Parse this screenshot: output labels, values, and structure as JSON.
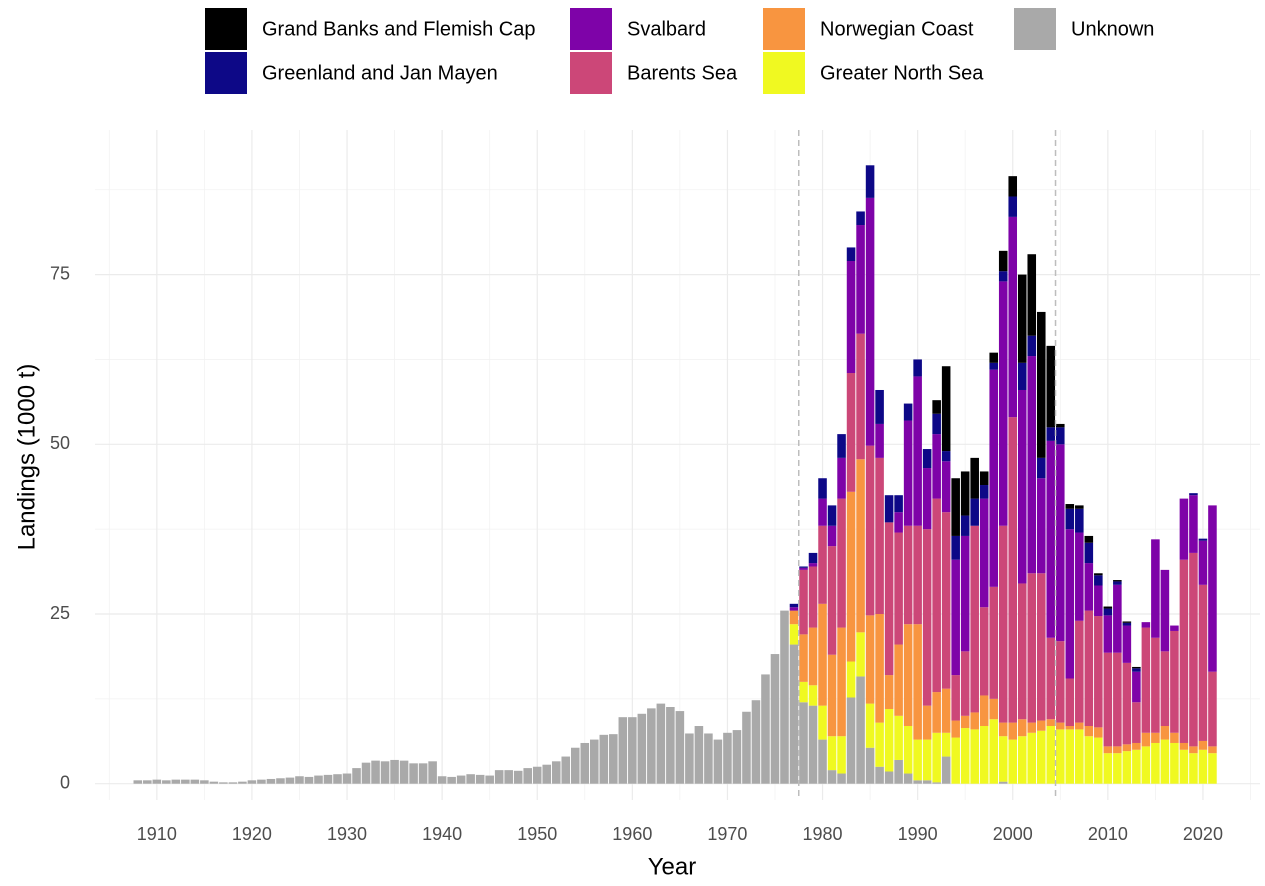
{
  "chart_data": {
    "type": "stacked-bar",
    "x_label": "Year",
    "y_label": "Landings (1000 t)",
    "x": [
      1908,
      1909,
      1910,
      1911,
      1912,
      1913,
      1914,
      1915,
      1916,
      1917,
      1918,
      1919,
      1920,
      1921,
      1922,
      1923,
      1924,
      1925,
      1926,
      1927,
      1928,
      1929,
      1930,
      1931,
      1932,
      1933,
      1934,
      1935,
      1936,
      1937,
      1938,
      1939,
      1940,
      1941,
      1942,
      1943,
      1944,
      1945,
      1946,
      1947,
      1948,
      1949,
      1950,
      1951,
      1952,
      1953,
      1954,
      1955,
      1956,
      1957,
      1958,
      1959,
      1960,
      1961,
      1962,
      1963,
      1964,
      1965,
      1966,
      1967,
      1968,
      1969,
      1970,
      1971,
      1972,
      1973,
      1974,
      1975,
      1976,
      1977,
      1978,
      1979,
      1980,
      1981,
      1982,
      1983,
      1984,
      1985,
      1986,
      1987,
      1988,
      1989,
      1990,
      1991,
      1992,
      1993,
      1994,
      1995,
      1996,
      1997,
      1998,
      1999,
      2000,
      2001,
      2002,
      2003,
      2004,
      2005,
      2006,
      2007,
      2008,
      2009,
      2010,
      2011,
      2012,
      2013,
      2014,
      2015,
      2016,
      2017,
      2018,
      2019,
      2020,
      2021
    ],
    "series": [
      {
        "name": "Grand Banks and Flemish Cap",
        "color": "#000000",
        "values": [
          null,
          null,
          null,
          null,
          null,
          null,
          null,
          null,
          null,
          null,
          null,
          null,
          null,
          null,
          null,
          null,
          null,
          null,
          null,
          null,
          null,
          null,
          null,
          null,
          null,
          null,
          null,
          null,
          null,
          null,
          null,
          null,
          null,
          null,
          null,
          null,
          null,
          null,
          null,
          null,
          null,
          null,
          null,
          null,
          null,
          null,
          null,
          null,
          null,
          null,
          null,
          null,
          null,
          null,
          null,
          null,
          null,
          null,
          null,
          null,
          null,
          null,
          null,
          null,
          null,
          null,
          null,
          null,
          null,
          0,
          0,
          0,
          0,
          0,
          0,
          0,
          0,
          0,
          0,
          0,
          0,
          0,
          0,
          0,
          2,
          12.5,
          8.5,
          6.5,
          6,
          2,
          1.5,
          3,
          3,
          13,
          12,
          21.5,
          12,
          0.5,
          0.7,
          0.5,
          1,
          0.3,
          0.3,
          0.2,
          0.2,
          0.2,
          0,
          0,
          0,
          0,
          0,
          0,
          0,
          0
        ]
      },
      {
        "name": "Greenland and Jan Mayen",
        "color": "#0d0887",
        "values": [
          null,
          null,
          null,
          null,
          null,
          null,
          null,
          null,
          null,
          null,
          null,
          null,
          null,
          null,
          null,
          null,
          null,
          null,
          null,
          null,
          null,
          null,
          null,
          null,
          null,
          null,
          null,
          null,
          null,
          null,
          null,
          null,
          null,
          null,
          null,
          null,
          null,
          null,
          null,
          null,
          null,
          null,
          null,
          null,
          null,
          null,
          null,
          null,
          null,
          null,
          null,
          null,
          null,
          null,
          null,
          null,
          null,
          null,
          null,
          null,
          null,
          null,
          null,
          null,
          null,
          null,
          null,
          null,
          null,
          0.5,
          0.2,
          1.5,
          3,
          3,
          3.5,
          2,
          2,
          4.8,
          5,
          4,
          2.5,
          2.5,
          2.5,
          2.8,
          3,
          1.5,
          3.5,
          3,
          4,
          2,
          1,
          1.5,
          3,
          4,
          3,
          3,
          2,
          2.5,
          3,
          3.5,
          3,
          1.5,
          1,
          0.5,
          0.4,
          0.5,
          0,
          0,
          0,
          0,
          0,
          0.3,
          0.3,
          0
        ]
      },
      {
        "name": "Svalbard",
        "color": "#7e03a8",
        "values": [
          null,
          null,
          null,
          null,
          null,
          null,
          null,
          null,
          null,
          null,
          null,
          null,
          null,
          null,
          null,
          null,
          null,
          null,
          null,
          null,
          null,
          null,
          null,
          null,
          null,
          null,
          null,
          null,
          null,
          null,
          null,
          null,
          null,
          null,
          null,
          null,
          null,
          null,
          null,
          null,
          null,
          null,
          null,
          null,
          null,
          null,
          null,
          null,
          null,
          null,
          null,
          null,
          null,
          null,
          null,
          null,
          null,
          null,
          null,
          null,
          null,
          null,
          null,
          null,
          null,
          null,
          null,
          null,
          null,
          0.5,
          0.3,
          0.5,
          4,
          3,
          6,
          16.5,
          16,
          36.5,
          5,
          0,
          3,
          15.5,
          22,
          9,
          9.5,
          7.5,
          17,
          17,
          0,
          16,
          32,
          36,
          29.5,
          28.5,
          32,
          14,
          29,
          29,
          22,
          13,
          7,
          4.5,
          5.5,
          10,
          5.5,
          4.5,
          0.8,
          14.5,
          12,
          0.8,
          9,
          8.5,
          6.5,
          24.5
        ]
      },
      {
        "name": "Barents Sea",
        "color": "#cc4778",
        "values": [
          null,
          null,
          null,
          null,
          null,
          null,
          null,
          null,
          null,
          null,
          null,
          null,
          null,
          null,
          null,
          null,
          null,
          null,
          null,
          null,
          null,
          null,
          null,
          null,
          null,
          null,
          null,
          null,
          null,
          null,
          null,
          null,
          null,
          null,
          null,
          null,
          null,
          null,
          null,
          null,
          null,
          null,
          null,
          null,
          null,
          null,
          null,
          null,
          null,
          null,
          null,
          null,
          null,
          null,
          null,
          null,
          null,
          null,
          null,
          null,
          null,
          null,
          null,
          null,
          null,
          null,
          null,
          null,
          null,
          0,
          9.5,
          9,
          11.5,
          16,
          19,
          17.5,
          18.5,
          25,
          23,
          22.5,
          16.5,
          14.5,
          14.5,
          26,
          28.5,
          26,
          6.7,
          9.5,
          27.5,
          13,
          16.5,
          29,
          45,
          20,
          22,
          21.7,
          12,
          12,
          7,
          15,
          17,
          16.4,
          13.8,
          13.8,
          12,
          6,
          15.5,
          14,
          11,
          15,
          27,
          28.5,
          23,
          11
        ]
      },
      {
        "name": "Norwegian Coast",
        "color": "#f89540",
        "values": [
          null,
          null,
          null,
          null,
          null,
          null,
          null,
          null,
          null,
          null,
          null,
          null,
          null,
          null,
          null,
          null,
          null,
          null,
          null,
          null,
          null,
          null,
          null,
          null,
          null,
          null,
          null,
          null,
          null,
          null,
          null,
          null,
          null,
          null,
          null,
          null,
          null,
          null,
          null,
          null,
          null,
          null,
          null,
          null,
          null,
          null,
          null,
          null,
          null,
          null,
          null,
          null,
          null,
          null,
          null,
          null,
          null,
          null,
          null,
          null,
          null,
          null,
          null,
          null,
          null,
          null,
          null,
          null,
          null,
          2,
          7,
          8.5,
          15,
          12,
          16,
          25,
          25.5,
          13,
          16,
          5,
          10.5,
          15,
          17,
          5,
          6,
          6.5,
          2.5,
          1.8,
          2.5,
          4.5,
          3,
          2,
          2.5,
          2.5,
          1.5,
          1.5,
          1,
          1,
          0.5,
          1,
          1.5,
          1.5,
          1,
          1,
          1,
          1,
          2,
          1.5,
          2,
          1.5,
          1,
          1,
          1.3,
          1
        ]
      },
      {
        "name": "Greater North Sea",
        "color": "#f0f921",
        "values": [
          null,
          null,
          null,
          null,
          null,
          null,
          null,
          null,
          null,
          null,
          null,
          null,
          null,
          null,
          null,
          null,
          null,
          null,
          null,
          null,
          null,
          null,
          null,
          null,
          null,
          null,
          null,
          null,
          null,
          null,
          null,
          null,
          null,
          null,
          null,
          null,
          null,
          null,
          null,
          null,
          null,
          null,
          null,
          null,
          null,
          null,
          null,
          null,
          null,
          null,
          null,
          null,
          null,
          null,
          null,
          null,
          null,
          null,
          null,
          null,
          null,
          null,
          null,
          null,
          null,
          null,
          null,
          null,
          null,
          3,
          3,
          3,
          5,
          5,
          5.5,
          5.3,
          6.5,
          6.5,
          6.5,
          9.2,
          6.5,
          7,
          6,
          6,
          7.3,
          3.5,
          6.8,
          8.2,
          8,
          8.5,
          9.5,
          6.7,
          6.5,
          7,
          7.5,
          7.8,
          8.5,
          8,
          8,
          8,
          7,
          6.8,
          4.5,
          4.5,
          4.8,
          5,
          5.5,
          6,
          6.5,
          6,
          5,
          4.5,
          5,
          4.5
        ]
      },
      {
        "name": "Unknown",
        "color": "#a9a9a9",
        "values": [
          0.5,
          0.5,
          0.6,
          0.5,
          0.6,
          0.6,
          0.6,
          0.5,
          0.3,
          0.2,
          0.2,
          0.3,
          0.5,
          0.6,
          0.7,
          0.8,
          0.9,
          1.1,
          1.0,
          1.2,
          1.3,
          1.4,
          1.5,
          2.3,
          3.1,
          3.4,
          3.3,
          3.5,
          3.4,
          3.0,
          3.0,
          3.3,
          1.1,
          1.0,
          1.2,
          1.4,
          1.3,
          1.2,
          2.0,
          2.0,
          1.9,
          2.3,
          2.5,
          2.8,
          3.3,
          4.0,
          5.3,
          6.0,
          6.5,
          7.2,
          7.3,
          9.8,
          9.8,
          10.3,
          11.1,
          11.8,
          11.3,
          10.7,
          7.4,
          8.5,
          7.4,
          6.5,
          7.5,
          7.9,
          10.6,
          12.3,
          16.1,
          19.1,
          25.5,
          20.5,
          12,
          11.5,
          6.5,
          2,
          1.5,
          12.7,
          15.8,
          5.3,
          2.5,
          1.8,
          3.5,
          1.5,
          0.5,
          0.5,
          0.2,
          4,
          0,
          0,
          0,
          0,
          0,
          0.3,
          0,
          0,
          0,
          0,
          0,
          0,
          0,
          0,
          0,
          0,
          0,
          0,
          0,
          0,
          0,
          0,
          0,
          0,
          0,
          0,
          0,
          0
        ]
      }
    ],
    "xlim": [
      1903.5,
      2026
    ],
    "xticks": [
      1910,
      1920,
      1930,
      1940,
      1950,
      1960,
      1970,
      1980,
      1990,
      2000,
      2010,
      2020
    ],
    "xminorticks": [
      1905,
      1915,
      1925,
      1935,
      1945,
      1955,
      1965,
      1975,
      1985,
      1995,
      2005,
      2015,
      2025
    ],
    "ylim": [
      -2.4,
      96.3
    ],
    "yticks": [
      0,
      25,
      50,
      75
    ],
    "yminorticks": [
      12.5,
      37.5,
      62.5,
      87.5
    ],
    "vlines": [
      1977.5,
      2004.5
    ],
    "grid": true,
    "legend": "top"
  }
}
